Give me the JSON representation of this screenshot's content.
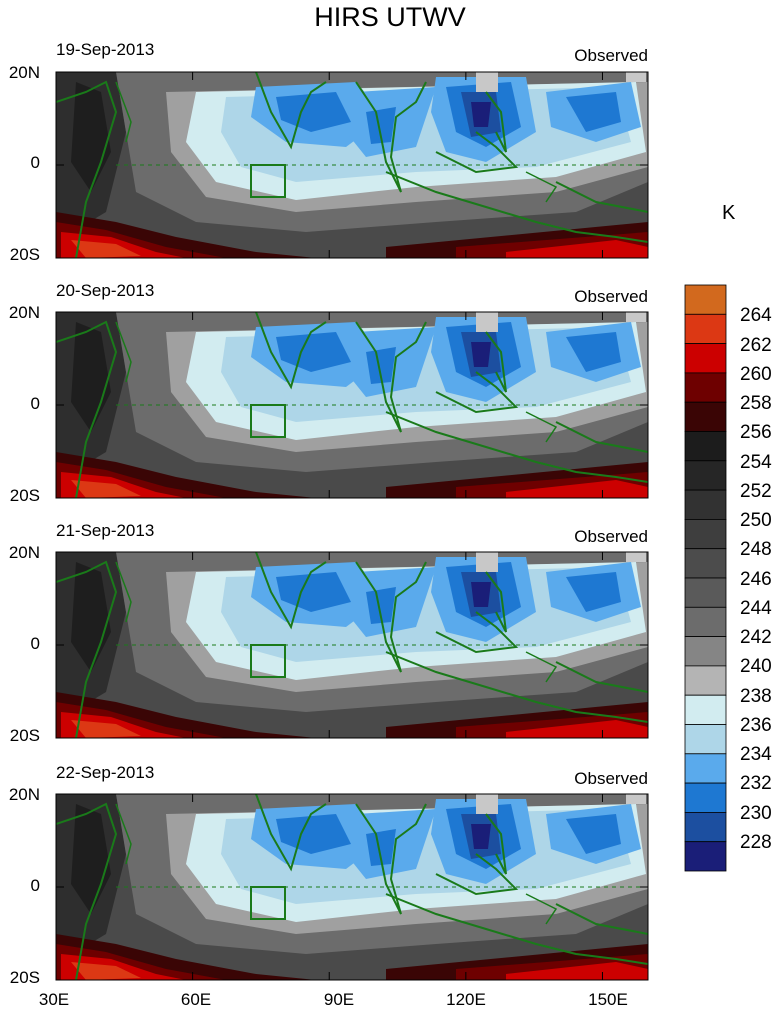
{
  "figure": {
    "title": "HIRS UTWV",
    "unit_label": "K"
  },
  "panels": [
    {
      "date": "19-Sep-2013",
      "label": "Observed"
    },
    {
      "date": "20-Sep-2013",
      "label": "Observed"
    },
    {
      "date": "21-Sep-2013",
      "label": "Observed"
    },
    {
      "date": "22-Sep-2013",
      "label": "Observed"
    }
  ],
  "axes": {
    "lat_labels": [
      "20N",
      "0",
      "20S"
    ],
    "lon_labels": [
      "30E",
      "60E",
      "90E",
      "120E",
      "150E"
    ],
    "lon_range": [
      30,
      160
    ],
    "lat_range": [
      -20,
      20
    ]
  },
  "colorbar": {
    "labels": [
      "264",
      "262",
      "260",
      "258",
      "256",
      "254",
      "252",
      "250",
      "248",
      "246",
      "244",
      "242",
      "240",
      "238",
      "236",
      "234",
      "232",
      "230",
      "228"
    ],
    "colors": [
      "#d2691e",
      "#dc3814",
      "#cc0000",
      "#6e0000",
      "#3a0505",
      "#1c1c1c",
      "#262626",
      "#323232",
      "#3e3e3e",
      "#4c4c4c",
      "#5a5a5a",
      "#6c6c6c",
      "#858585",
      "#b4b4b4",
      "#d2ecf0",
      "#aed6e8",
      "#5aaaec",
      "#1e78d2",
      "#1c4fa0",
      "#1a1e78"
    ]
  }
}
